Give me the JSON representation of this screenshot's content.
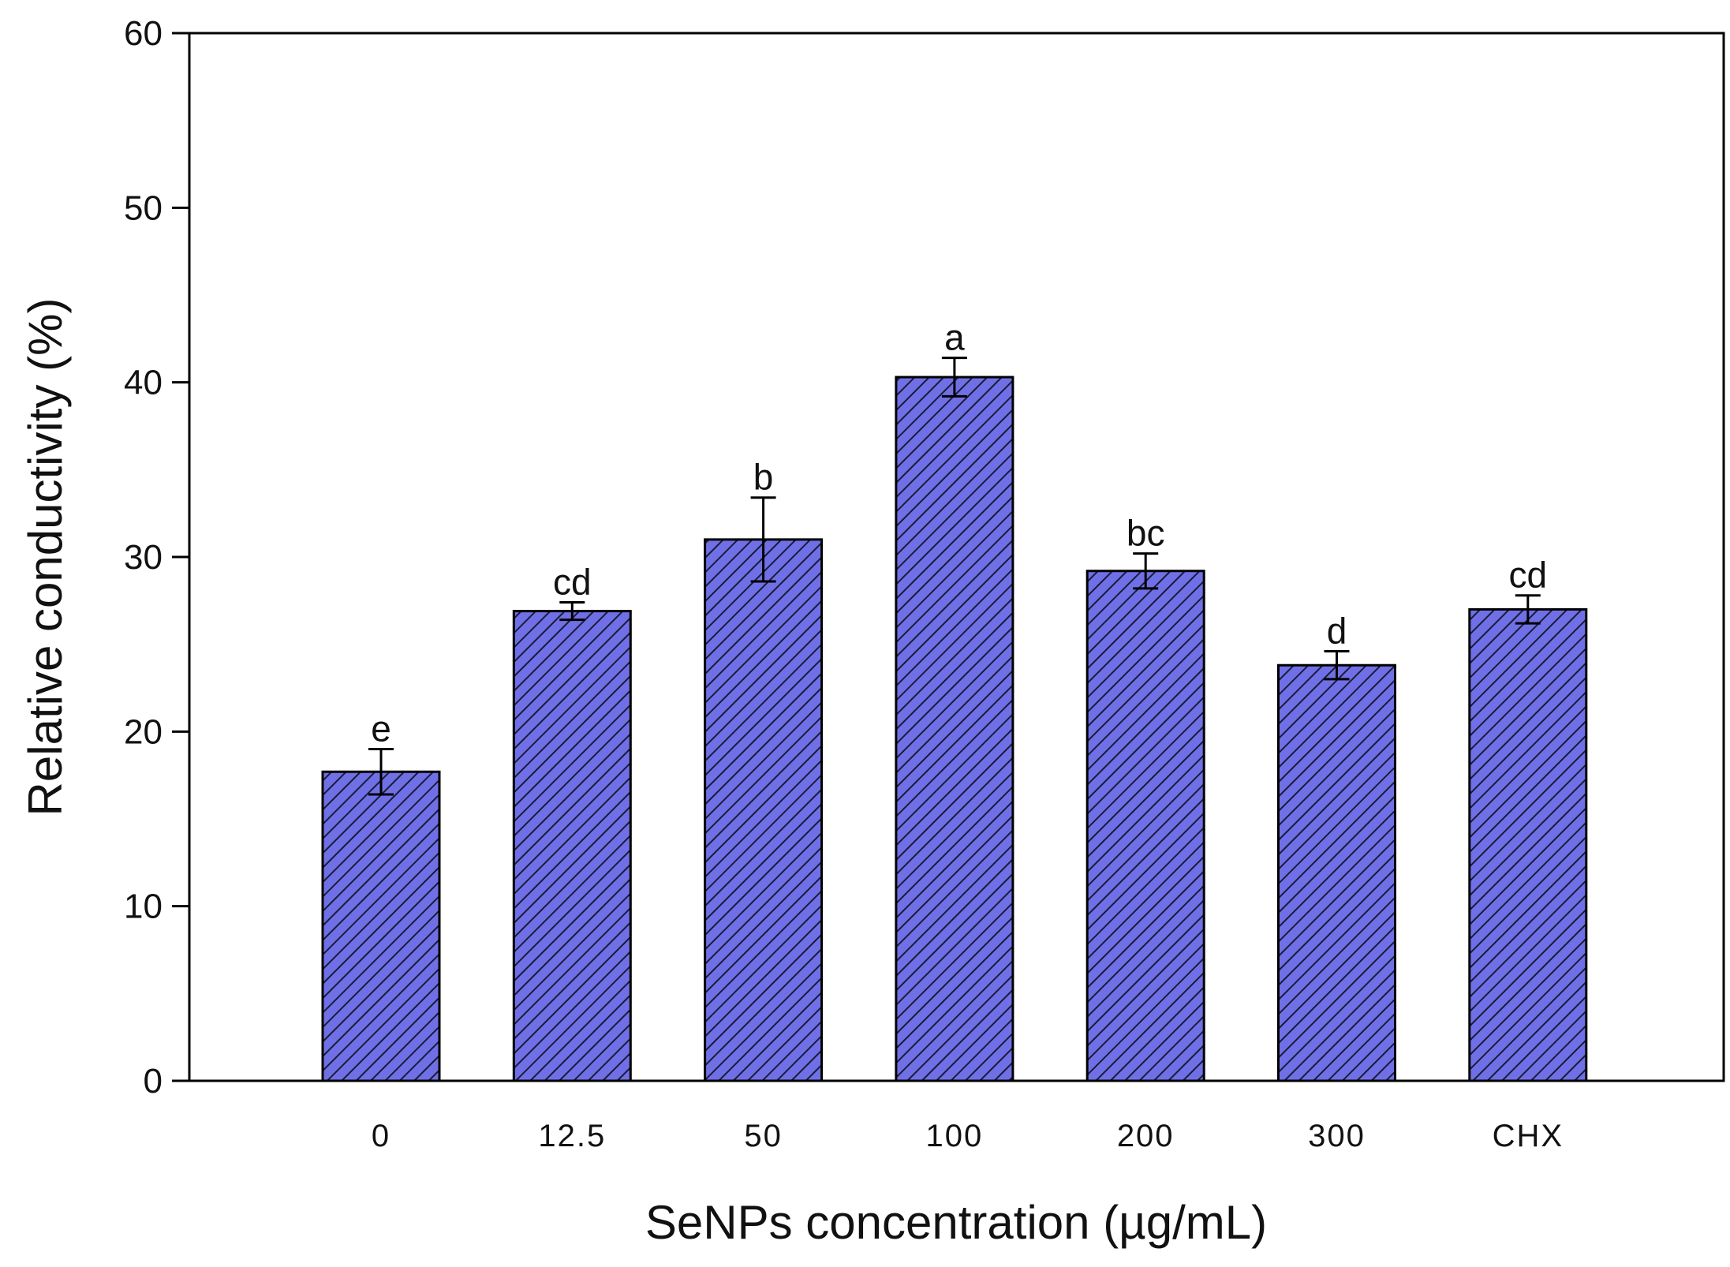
{
  "chart_data": {
    "type": "bar",
    "title": "",
    "xlabel": "SeNPs concentration (µg/mL)",
    "ylabel": "Relative conductivity (%)",
    "ylim": [
      0,
      60
    ],
    "yticks": [
      0,
      10,
      20,
      30,
      40,
      50,
      60
    ],
    "grid": false,
    "legend": "none",
    "bar_color": "#7070e6",
    "bar_hatch": "diagonal",
    "categories": [
      "0",
      "12.5",
      "50",
      "100",
      "200",
      "300",
      "CHX"
    ],
    "series": [
      {
        "name": "Relative conductivity",
        "values": [
          17.7,
          26.9,
          31.0,
          40.3,
          29.2,
          23.8,
          27.0
        ],
        "errors": [
          1.3,
          0.5,
          2.4,
          1.1,
          1.0,
          0.8,
          0.8
        ],
        "significance": [
          "e",
          "cd",
          "b",
          "a",
          "bc",
          "d",
          "cd"
        ]
      }
    ]
  }
}
